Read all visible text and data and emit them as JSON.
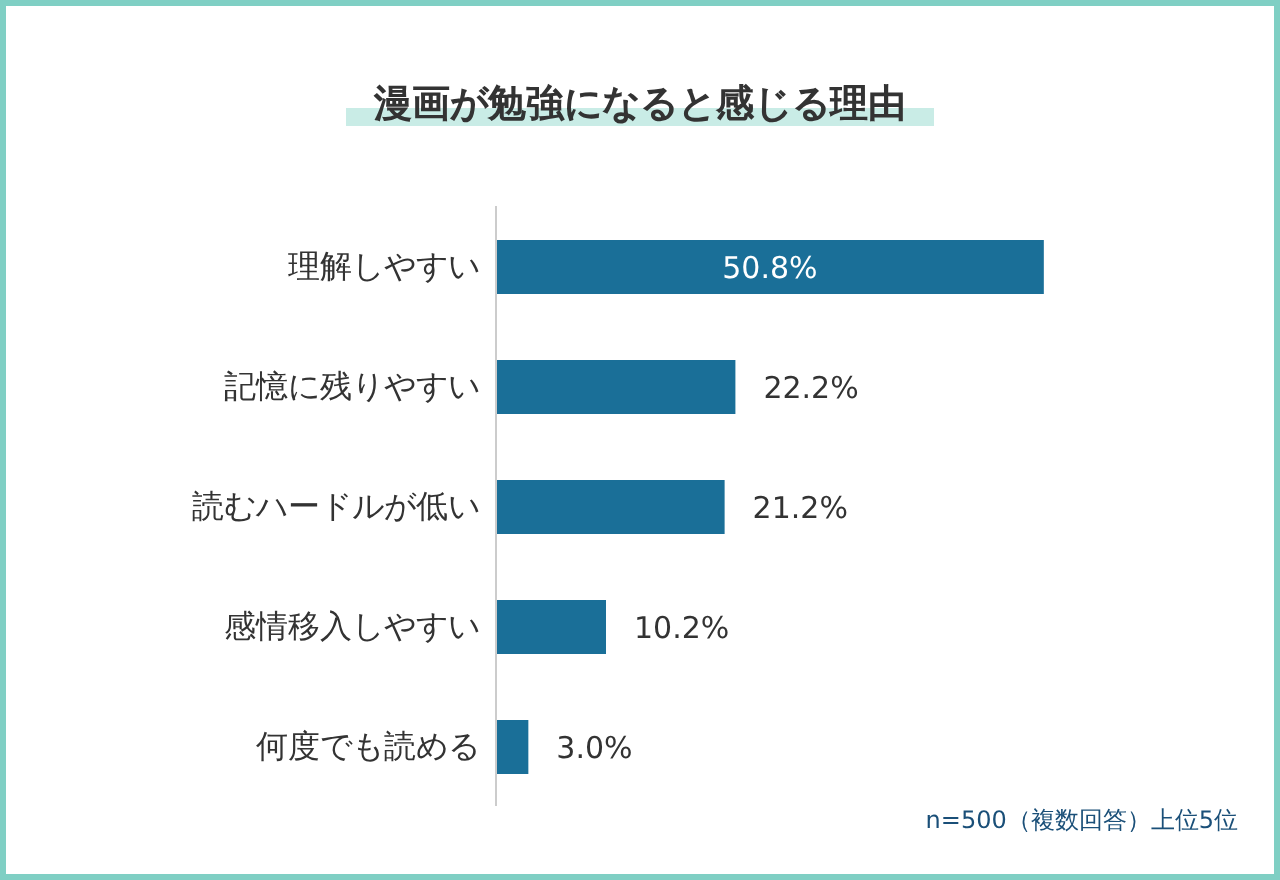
{
  "chart_data": {
    "type": "bar",
    "orientation": "horizontal",
    "title": "漫画が勉強になると感じる理由",
    "categories": [
      "理解しやすい",
      "記憶に残りやすい",
      "読むハードルが低い",
      "感情移入しやすい",
      "何度でも読める"
    ],
    "values": [
      50.8,
      22.2,
      21.2,
      10.2,
      3.0
    ],
    "value_labels": [
      "50.8%",
      "22.2%",
      "21.2%",
      "10.2%",
      "3.0%"
    ],
    "color": "#1a6f98",
    "annotations": [
      "n=500（複数回答）上位5位"
    ]
  }
}
